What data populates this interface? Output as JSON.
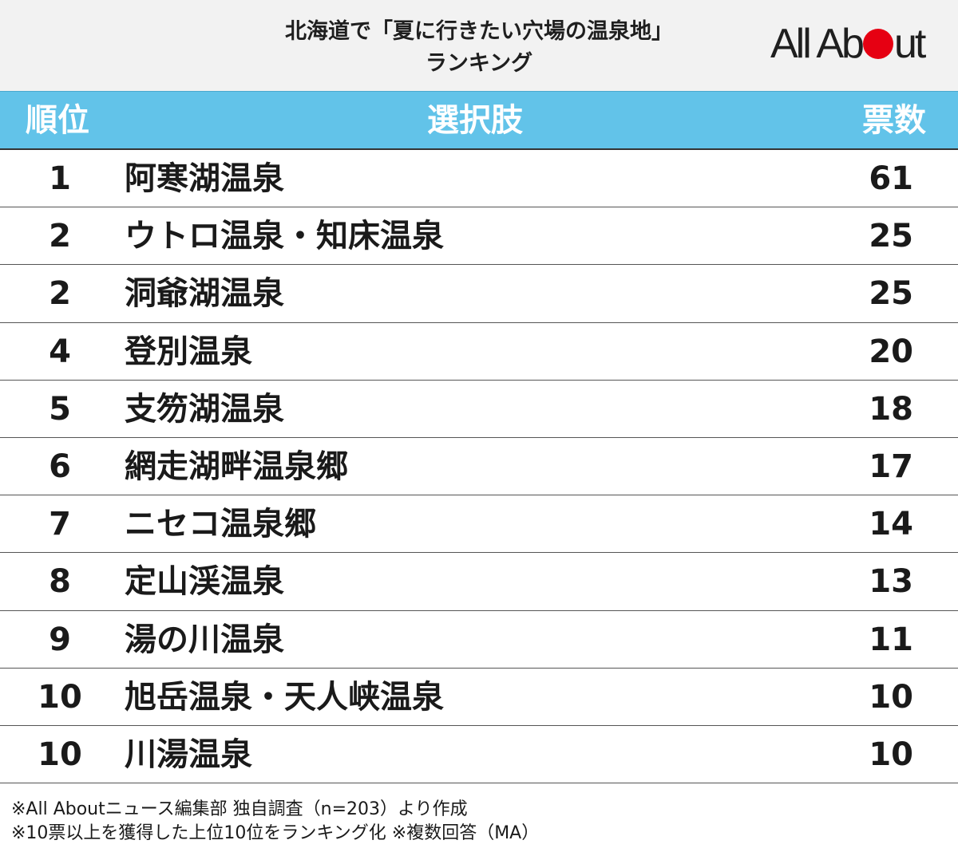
{
  "title": {
    "line1": "北海道で「夏に行きたい穴場の温泉地」",
    "line2": "ランキング"
  },
  "logo": {
    "text_before": "All Ab",
    "text_after": "ut",
    "dot_color": "#e60012"
  },
  "header": {
    "rank": "順位",
    "choice": "選択肢",
    "votes": "票数",
    "bg_color": "#62c3e9"
  },
  "rows": [
    {
      "rank": "1",
      "name": "阿寒湖温泉",
      "votes": "61"
    },
    {
      "rank": "2",
      "name": "ウトロ温泉・知床温泉",
      "votes": "25"
    },
    {
      "rank": "2",
      "name": "洞爺湖温泉",
      "votes": "25"
    },
    {
      "rank": "4",
      "name": "登別温泉",
      "votes": "20"
    },
    {
      "rank": "5",
      "name": "支笏湖温泉",
      "votes": "18"
    },
    {
      "rank": "6",
      "name": "網走湖畔温泉郷",
      "votes": "17"
    },
    {
      "rank": "7",
      "name": "ニセコ温泉郷",
      "votes": "14"
    },
    {
      "rank": "8",
      "name": "定山渓温泉",
      "votes": "13"
    },
    {
      "rank": "9",
      "name": "湯の川温泉",
      "votes": "11"
    },
    {
      "rank": "10",
      "name": "旭岳温泉・天人峡温泉",
      "votes": "10"
    },
    {
      "rank": "10",
      "name": "川湯温泉",
      "votes": "10"
    }
  ],
  "notes": {
    "line1": "※All Aboutニュース編集部 独自調査（n=203）より作成",
    "line2": "※10票以上を獲得した上位10位をランキング化 ※複数回答（MA）"
  }
}
